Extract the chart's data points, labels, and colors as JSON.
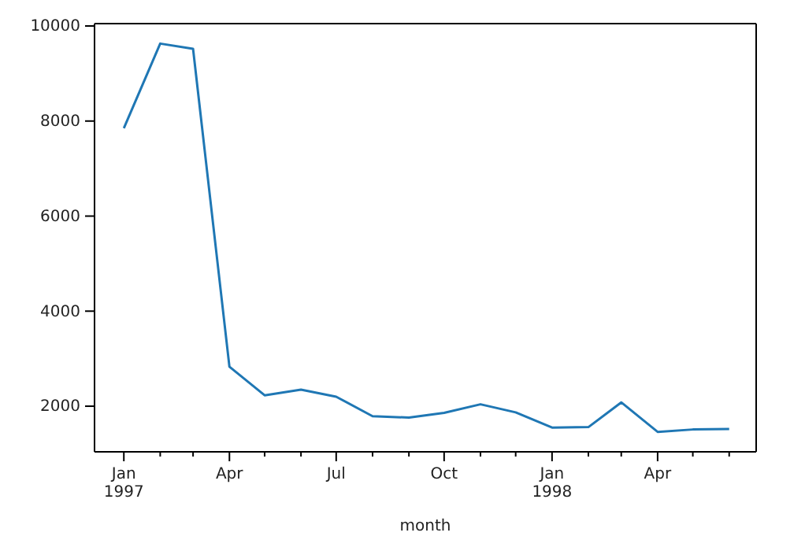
{
  "chart_data": {
    "type": "line",
    "xlabel": "month",
    "x": [
      "1997-01",
      "1997-02",
      "1997-03",
      "1997-04",
      "1997-05",
      "1997-06",
      "1997-07",
      "1997-08",
      "1997-09",
      "1997-10",
      "1997-11",
      "1997-12",
      "1998-01",
      "1998-02",
      "1998-03",
      "1998-04",
      "1998-05",
      "1998-06"
    ],
    "series": [
      {
        "color": "#1f77b4",
        "values": [
          7850,
          9630,
          9520,
          2830,
          2230,
          2350,
          2200,
          1790,
          1760,
          1860,
          2040,
          1870,
          1550,
          1560,
          2080,
          1460,
          1510,
          1520
        ]
      }
    ],
    "xlim": [
      "1996-12-07",
      "1998-06-24"
    ],
    "xticks": [
      {
        "value": "1997-01",
        "label": "Jan\n1997"
      },
      {
        "value": "1997-02",
        "label": null
      },
      {
        "value": "1997-03",
        "label": null
      },
      {
        "value": "1997-04",
        "label": "Apr"
      },
      {
        "value": "1997-05",
        "label": null
      },
      {
        "value": "1997-06",
        "label": null
      },
      {
        "value": "1997-07",
        "label": "Jul"
      },
      {
        "value": "1997-08",
        "label": null
      },
      {
        "value": "1997-09",
        "label": null
      },
      {
        "value": "1997-10",
        "label": "Oct"
      },
      {
        "value": "1997-11",
        "label": null
      },
      {
        "value": "1997-12",
        "label": null
      },
      {
        "value": "1998-01",
        "label": "Jan\n1998"
      },
      {
        "value": "1998-02",
        "label": null
      },
      {
        "value": "1998-03",
        "label": null
      },
      {
        "value": "1998-04",
        "label": "Apr"
      },
      {
        "value": "1998-05",
        "label": null
      },
      {
        "value": "1998-06",
        "label": null
      }
    ],
    "ylim": [
      1040,
      10050
    ],
    "yticks": [
      2000,
      4000,
      6000,
      8000,
      10000
    ],
    "grid": false,
    "legend": false,
    "marker": "none",
    "line_style": "solid"
  }
}
